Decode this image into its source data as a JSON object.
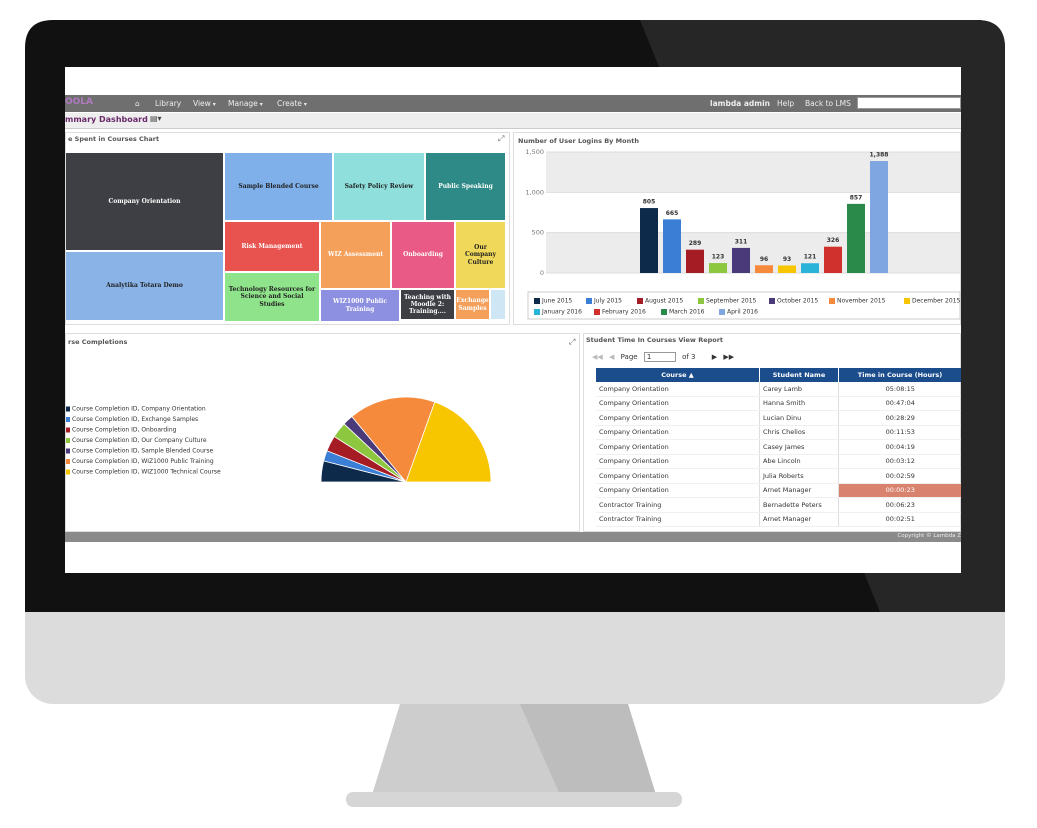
{
  "nav": {
    "brand": "OOLA",
    "items": [
      "Library",
      "View",
      "Manage",
      "Create"
    ],
    "user": "lambda admin",
    "help": "Help",
    "back": "Back to LMS"
  },
  "dashboard_title": "mmary Dashboard",
  "treemap": {
    "title": "e Spent in Courses Chart",
    "tiles": [
      "Company Orientation",
      "Analytika Totara Demo",
      "Sample Blended Course",
      "Safety Policy Review",
      "Public Speaking",
      "Risk Management",
      "WIZ Assessment",
      "Onboarding",
      "Our Company Culture",
      "Technology Resources for Science and Social Studies",
      "WIZ1000 Public Training",
      "Teaching with Moodle 2: Training....",
      "Exchange Samples"
    ]
  },
  "chart_data": [
    {
      "type": "bar",
      "title": "Number of User Logins By Month",
      "categories": [
        "June 2015",
        "July 2015",
        "August 2015",
        "September 2015",
        "October 2015",
        "November 2015",
        "December 2015",
        "January 2016",
        "February 2016",
        "March 2016",
        "April 2016"
      ],
      "values": [
        805,
        665,
        289,
        123,
        311,
        96,
        93,
        121,
        326,
        857,
        1388
      ],
      "value_labels": [
        "805",
        "665",
        "289",
        "123",
        "311",
        "96",
        "93",
        "121",
        "326",
        "857",
        "1,388"
      ],
      "colors": [
        "#0d2a4a",
        "#3a7fd5",
        "#a51c24",
        "#8dc63f",
        "#4b3a7a",
        "#f58a3c",
        "#f7c600",
        "#2ab3d9",
        "#d0312d",
        "#2a8a4a",
        "#7fa6e0"
      ],
      "ylim": [
        0,
        1500
      ],
      "yticks": [
        0,
        500,
        {
          "value": 1000,
          "label": "1,000"
        },
        {
          "value": 1500,
          "label": "1,500"
        }
      ],
      "grid": true
    },
    {
      "type": "pie",
      "title": "rse Completions",
      "semicircle": true,
      "categories": [
        "Course Completion ID, Company Orientation",
        "Course Completion ID, Exchange Samples",
        "Course Completion ID, Onboarding",
        "Course Completion ID, Our Company Culture",
        "Course Completion ID, Sample Blended Course",
        "Course Completion ID, WIZ1000 Public Training",
        "Course Completion ID, WIZ1000 Technical Course"
      ],
      "values": [
        8,
        4,
        6,
        6,
        4,
        33,
        39
      ],
      "colors": [
        "#0d2a4a",
        "#3a7fd5",
        "#a51c24",
        "#8dc63f",
        "#4b3a7a",
        "#f58a3c",
        "#f7c600"
      ]
    }
  ],
  "table": {
    "title": "Student Time In Courses View Report",
    "pager": {
      "label": "Page",
      "current": 1,
      "total": "of 3"
    },
    "headers": [
      "Course",
      "Student Name",
      "Time in Course (Hours)"
    ],
    "rows": [
      [
        "Company Orientation",
        "Carey Lamb",
        "05:08:15"
      ],
      [
        "Company Orientation",
        "Hanna Smith",
        "00:47:04"
      ],
      [
        "Company Orientation",
        "Lucian Dinu",
        "00:28:29"
      ],
      [
        "Company Orientation",
        "Chris Chelios",
        "00:11:53"
      ],
      [
        "Company Orientation",
        "Casey James",
        "00:04:19"
      ],
      [
        "Company Orientation",
        "Abe Lincoln",
        "00:03:12"
      ],
      [
        "Company Orientation",
        "Julia Roberts",
        "00:02:59"
      ],
      [
        "Company Orientation",
        "Arnet Manager",
        "00:00:23"
      ],
      [
        "Contractor Training",
        "Bernadette Peters",
        "00:06:23"
      ],
      [
        "Contractor Training",
        "Arnet Manager",
        "00:02:51"
      ]
    ]
  },
  "footer": "Copyright © Lambda Z"
}
